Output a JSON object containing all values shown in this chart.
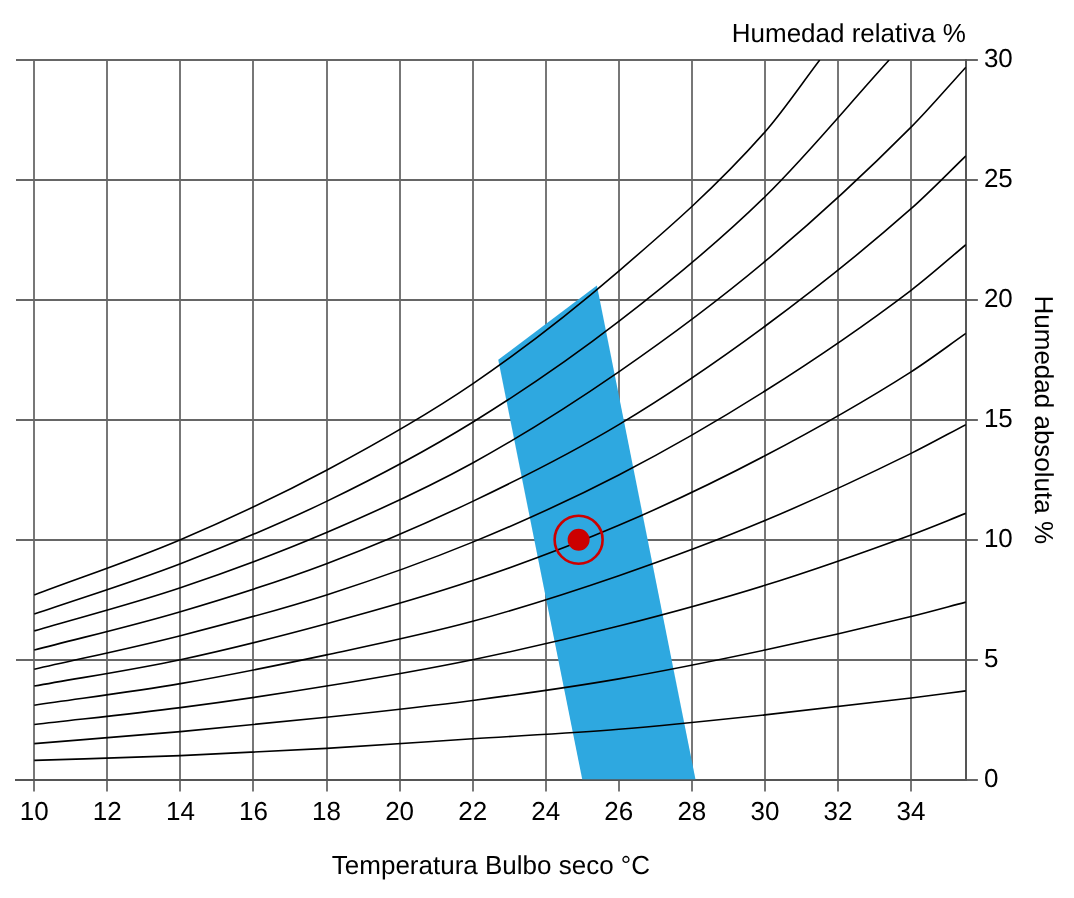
{
  "chart_data": {
    "type": "line",
    "xlabel": "Temperatura Bulbo seco °C",
    "ylabel": "Humedad absoluta %",
    "annotations": [
      "Humedad relativa %"
    ],
    "xlim": [
      9.5,
      35.5
    ],
    "xticks": [
      10,
      12,
      14,
      16,
      18,
      20,
      22,
      24,
      26,
      28,
      30,
      32,
      34
    ],
    "ylim": [
      0,
      30
    ],
    "yticks": [
      0,
      5,
      10,
      15,
      20,
      25,
      30
    ],
    "grid": true,
    "legend": false,
    "marker": "none",
    "line_style": "solid",
    "series": [
      {
        "type": "area",
        "color": "#2ea8e0",
        "x": [
          22.7,
          25.4,
          28.1,
          25.0,
          22.7
        ],
        "values": [
          17.5,
          20.6,
          0,
          0,
          17.5
        ]
      },
      {
        "color": "#000000",
        "x": [
          10,
          14,
          18,
          22,
          26,
          30,
          31.5
        ],
        "values": [
          7.7,
          10.0,
          12.9,
          16.5,
          21.2,
          27.0,
          30
        ]
      },
      {
        "type": "line",
        "color": "#000000",
        "x": [
          10,
          14,
          18,
          22,
          26,
          30,
          33.4
        ],
        "values": [
          6.9,
          9.0,
          11.6,
          14.9,
          19.1,
          24.3,
          30
        ]
      },
      {
        "type": "line",
        "color": "#000000",
        "x": [
          10,
          14,
          18,
          22,
          26,
          30,
          34,
          35.5
        ],
        "values": [
          6.2,
          8.0,
          10.3,
          13.2,
          17.0,
          21.6,
          27.2,
          29.7
        ]
      },
      {
        "type": "line",
        "color": "#000000",
        "x": [
          10,
          14,
          18,
          22,
          26,
          30,
          34,
          35.5
        ],
        "values": [
          5.4,
          7.0,
          9.0,
          11.6,
          14.8,
          18.9,
          23.8,
          26.0
        ]
      },
      {
        "type": "line",
        "color": "#000000",
        "x": [
          10,
          14,
          18,
          22,
          26,
          30,
          34,
          35.5
        ],
        "values": [
          4.6,
          6.0,
          7.7,
          9.9,
          12.7,
          16.2,
          20.4,
          22.3
        ]
      },
      {
        "type": "line",
        "color": "#000000",
        "x": [
          10,
          14,
          18,
          22,
          26,
          30,
          34,
          35.5
        ],
        "values": [
          3.9,
          5.0,
          6.5,
          8.3,
          10.6,
          13.5,
          17.0,
          18.6
        ]
      },
      {
        "type": "line",
        "color": "#000000",
        "x": [
          10,
          14,
          18,
          22,
          26,
          30,
          34,
          35.5
        ],
        "values": [
          3.1,
          4.0,
          5.2,
          6.6,
          8.5,
          10.8,
          13.6,
          14.8
        ]
      },
      {
        "type": "line",
        "color": "#000000",
        "x": [
          10,
          14,
          18,
          22,
          26,
          30,
          34,
          35.5
        ],
        "values": [
          2.3,
          3.0,
          3.9,
          5.0,
          6.4,
          8.1,
          10.2,
          11.1
        ]
      },
      {
        "type": "line",
        "color": "#000000",
        "x": [
          10,
          14,
          18,
          22,
          26,
          30,
          34,
          35.5
        ],
        "values": [
          1.5,
          2.0,
          2.6,
          3.3,
          4.2,
          5.4,
          6.8,
          7.4
        ]
      },
      {
        "type": "line",
        "color": "#000000",
        "x": [
          10,
          14,
          18,
          22,
          26,
          30,
          34,
          35.5
        ],
        "values": [
          0.8,
          1.0,
          1.3,
          1.7,
          2.1,
          2.7,
          3.4,
          3.7
        ]
      },
      {
        "type": "scatter",
        "color": "#cc0000",
        "marker": "circle",
        "x": [
          24.9
        ],
        "values": [
          10
        ]
      }
    ]
  }
}
